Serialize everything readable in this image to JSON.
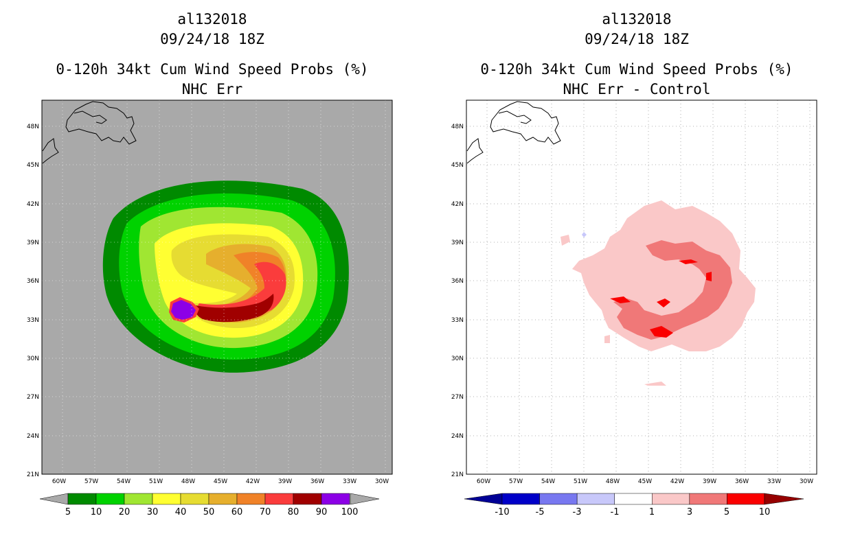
{
  "left": {
    "storm_id": "al132018",
    "datetime": "09/24/18 18Z",
    "title": "0-120h 34kt Cum Wind Speed Probs (%)",
    "subtitle": "NHC Err",
    "colorbar": {
      "labels": [
        "5",
        "10",
        "20",
        "30",
        "40",
        "50",
        "60",
        "70",
        "80",
        "90",
        "100"
      ],
      "colors": [
        "#008a00",
        "#00d200",
        "#a0e632",
        "#ffff32",
        "#e6dc32",
        "#e6af2d",
        "#f08228",
        "#fa3c3c",
        "#a00000",
        "#8c00e6"
      ],
      "under_color": "#a9a9a9",
      "over_color": "#a9a9a9"
    },
    "background_color": "#a9a9a9"
  },
  "right": {
    "storm_id": "al132018",
    "datetime": "09/24/18 18Z",
    "title": "0-120h 34kt Cum Wind Speed Probs (%)",
    "subtitle": "NHC Err - Control",
    "colorbar": {
      "labels": [
        "-10",
        "-5",
        "-3",
        "-1",
        "1",
        "3",
        "5",
        "10"
      ],
      "colors": [
        "#0000c8",
        "#7878f0",
        "#c8c8fa",
        "#ffffff",
        "#fac8c8",
        "#f07878",
        "#fa0000"
      ],
      "under_color": "#000096",
      "over_color": "#960000"
    },
    "background_color": "#ffffff"
  },
  "axes": {
    "lat_labels": [
      "48N",
      "45N",
      "42N",
      "39N",
      "36N",
      "33N",
      "30N",
      "27N",
      "24N",
      "21N"
    ],
    "lon_labels": [
      "60W",
      "57W",
      "54W",
      "51W",
      "48W",
      "45W",
      "42W",
      "39W",
      "36W",
      "33W",
      "30W"
    ]
  }
}
